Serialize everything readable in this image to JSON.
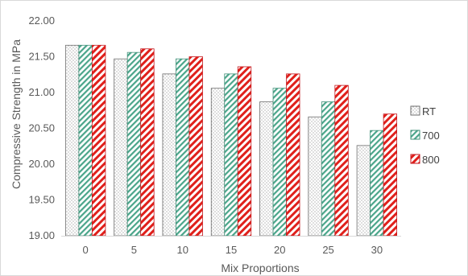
{
  "chart_data": {
    "type": "bar",
    "title": "",
    "xlabel": "Mix Proportions",
    "ylabel": "Compressive Strength in MPa",
    "categories": [
      "0",
      "5",
      "10",
      "15",
      "20",
      "25",
      "30"
    ],
    "series": [
      {
        "name": "RT",
        "values": [
          21.66,
          21.47,
          21.26,
          21.06,
          20.87,
          20.66,
          20.26
        ]
      },
      {
        "name": "700",
        "values": [
          21.66,
          21.56,
          21.47,
          21.26,
          21.06,
          20.87,
          20.47
        ]
      },
      {
        "name": "800",
        "values": [
          21.66,
          21.61,
          21.5,
          21.36,
          21.26,
          21.1,
          20.7
        ]
      }
    ],
    "ylim": [
      19.0,
      22.0
    ],
    "yticks": [
      "19.00",
      "19.50",
      "20.00",
      "20.50",
      "21.00",
      "21.50",
      "22.00"
    ],
    "grid": false,
    "legend_position": "right"
  }
}
